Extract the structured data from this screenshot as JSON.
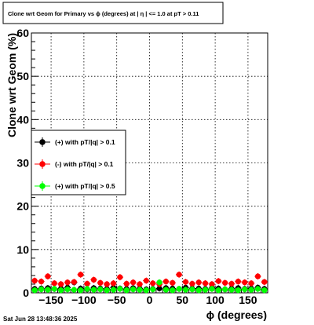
{
  "footer_timestamp": "Sat Jun 28 13:48:36 2025",
  "chart_data": {
    "type": "scatter",
    "title": "Clone wrt Geom for Primary vs ϕ (degrees) at | η | <= 1.0 at pT > 0.11",
    "xlabel": "ϕ (degrees)",
    "ylabel": "Clone wrt Geom (%)",
    "xlim": [
      -180,
      180
    ],
    "ylim": [
      0,
      60
    ],
    "x_ticks": [
      -150,
      -100,
      -50,
      0,
      50,
      100,
      150
    ],
    "x_tick_labels": [
      "−150",
      "−100",
      "−50",
      "0",
      "50",
      "100",
      "150"
    ],
    "y_ticks": [
      0,
      10,
      20,
      30,
      40,
      50,
      60
    ],
    "grid": true,
    "legend_position": "middle-left",
    "x": [
      -175,
      -165,
      -155,
      -145,
      -135,
      -125,
      -115,
      -105,
      -95,
      -85,
      -75,
      -65,
      -55,
      -45,
      -35,
      -25,
      -15,
      -5,
      5,
      15,
      25,
      35,
      45,
      55,
      65,
      75,
      85,
      95,
      105,
      115,
      125,
      135,
      145,
      155,
      165,
      175
    ],
    "series": [
      {
        "name": "(+) with pT/|q| > 0.1",
        "color": "#000000",
        "values": [
          0.9,
          1.0,
          1.1,
          0.9,
          1.0,
          1.2,
          2.4,
          1.0,
          0.8,
          1.1,
          1.0,
          0.9,
          1.2,
          1.0,
          0.9,
          1.1,
          1.0,
          0.8,
          0.9,
          1.0,
          1.1,
          1.0,
          0.9,
          1.2,
          1.0,
          1.0,
          0.9,
          1.1,
          1.0,
          0.8,
          1.0,
          1.1,
          0.9,
          1.0,
          1.2,
          0.9
        ]
      },
      {
        "name": "(-) with pT/|q| > 0.1",
        "color": "#ff0000",
        "values": [
          2.8,
          2.6,
          3.8,
          2.2,
          2.0,
          2.4,
          2.5,
          4.2,
          2.1,
          3.0,
          2.3,
          2.0,
          2.2,
          3.6,
          2.1,
          2.4,
          2.0,
          2.8,
          2.2,
          2.0,
          2.6,
          2.3,
          4.2,
          2.5,
          2.1,
          2.4,
          2.2,
          2.0,
          2.7,
          2.3,
          2.1,
          2.6,
          2.4,
          2.2,
          3.8,
          2.5
        ]
      },
      {
        "name": "(+) with pT/|q| > 0.5",
        "color": "#00ff00",
        "values": [
          0.6,
          0.8,
          0.7,
          0.9,
          0.6,
          0.8,
          0.7,
          0.6,
          0.9,
          0.7,
          0.8,
          0.6,
          0.7,
          0.9,
          0.6,
          0.8,
          0.7,
          0.6,
          0.8,
          2.4,
          0.7,
          0.6,
          0.9,
          0.7,
          0.8,
          0.6,
          0.7,
          0.9,
          0.6,
          0.8,
          0.7,
          0.6,
          0.8,
          0.7,
          0.9,
          0.6
        ]
      }
    ]
  }
}
